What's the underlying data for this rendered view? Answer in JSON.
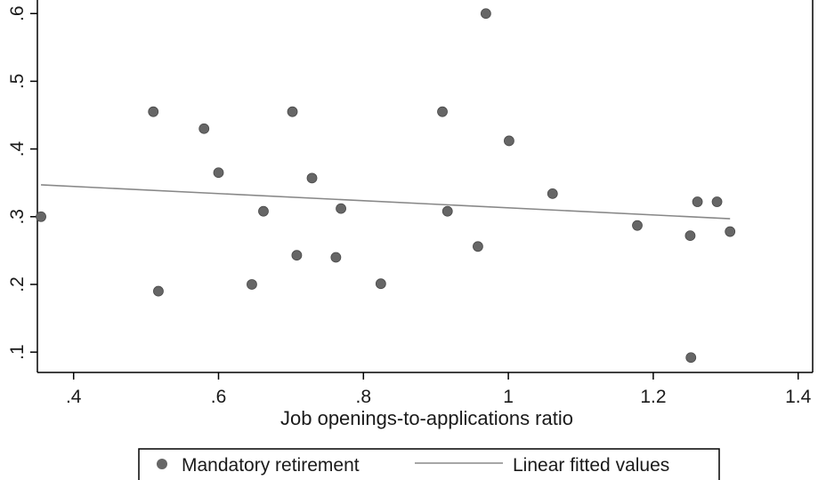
{
  "chart_data": {
    "type": "scatter",
    "title": "",
    "xlabel": "Job openings-to-applications ratio",
    "ylabel": "",
    "xlim": [
      0.35,
      1.42
    ],
    "ylim": [
      0.07,
      0.62
    ],
    "x_ticks": [
      0.4,
      0.6,
      0.8,
      1.0,
      1.2,
      1.4
    ],
    "x_tick_labels": [
      ".4",
      ".6",
      ".8",
      "1",
      "1.2",
      "1.4"
    ],
    "y_ticks": [
      0.1,
      0.2,
      0.3,
      0.4,
      0.5,
      0.6
    ],
    "y_tick_labels": [
      ".1",
      ".2",
      ".3",
      ".4",
      ".5",
      ".6"
    ],
    "grid": false,
    "legend_position": "bottom",
    "series": [
      {
        "name": "Mandatory retirement",
        "type": "scatter",
        "color": "#666666",
        "points": [
          [
            0.355,
            0.3
          ],
          [
            0.51,
            0.455
          ],
          [
            0.517,
            0.19
          ],
          [
            0.58,
            0.43
          ],
          [
            0.6,
            0.365
          ],
          [
            0.646,
            0.2
          ],
          [
            0.662,
            0.308
          ],
          [
            0.702,
            0.455
          ],
          [
            0.708,
            0.243
          ],
          [
            0.729,
            0.357
          ],
          [
            0.762,
            0.24
          ],
          [
            0.769,
            0.312
          ],
          [
            0.824,
            0.201
          ],
          [
            0.909,
            0.455
          ],
          [
            0.916,
            0.308
          ],
          [
            0.958,
            0.256
          ],
          [
            0.969,
            0.6
          ],
          [
            1.001,
            0.412
          ],
          [
            1.061,
            0.334
          ],
          [
            1.178,
            0.287
          ],
          [
            1.251,
            0.272
          ],
          [
            1.252,
            0.092
          ],
          [
            1.261,
            0.322
          ],
          [
            1.288,
            0.322
          ],
          [
            1.306,
            0.278
          ]
        ]
      },
      {
        "name": "Linear fitted values",
        "type": "line",
        "color": "#888888",
        "points": [
          [
            0.355,
            0.347
          ],
          [
            1.306,
            0.297
          ]
        ]
      }
    ]
  }
}
